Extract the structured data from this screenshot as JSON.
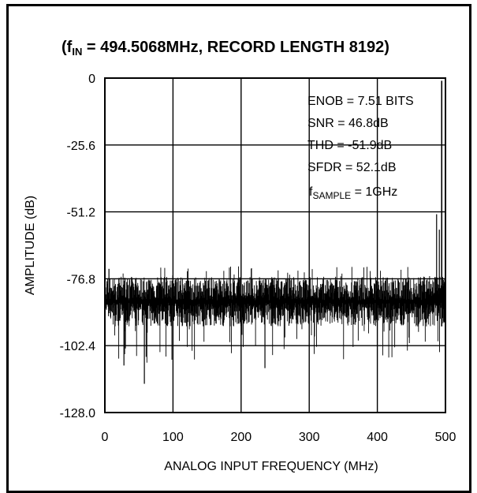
{
  "chart_data": {
    "type": "line",
    "title_prefix": "(f",
    "title_subscript": "IN",
    "title_rest": " = 494.5068MHz, RECORD LENGTH 8192)",
    "xlabel": "ANALOG INPUT FREQUENCY (MHz)",
    "ylabel": "AMPLITUDE (dB)",
    "xlim": [
      0,
      500
    ],
    "ylim": [
      -128.0,
      0
    ],
    "x_ticks": [
      "0",
      "100",
      "200",
      "300",
      "400",
      "500"
    ],
    "y_ticks": [
      "0",
      "-25.6",
      "-51.2",
      "-76.8",
      "-102.4",
      "-128.0"
    ],
    "grid": true,
    "annotations": [
      "ENOB = 7.51 BITS",
      "SNR = 46.8dB",
      "THD = -51.9dB",
      "SFDR = 52.1dB"
    ],
    "sample_label_prefix": "f",
    "sample_label_subscript": "SAMPLE",
    "sample_label_rest": " = 1GHz",
    "series": [
      {
        "noise_floor_db": -85,
        "noise_band_db": [
          -95,
          -76
        ],
        "fundamental": {
          "x": 494.5,
          "y": -1.0
        },
        "spurs": [
          {
            "x": 487,
            "y": -52.1
          },
          {
            "x": 491,
            "y": -58
          },
          {
            "x": 58,
            "y": -117
          },
          {
            "x": 235,
            "y": -111
          },
          {
            "x": 28,
            "y": -110
          },
          {
            "x": 6,
            "y": -73
          }
        ]
      }
    ],
    "colors": {
      "trace": "#000000",
      "grid": "#000000",
      "background": "#ffffff"
    }
  }
}
